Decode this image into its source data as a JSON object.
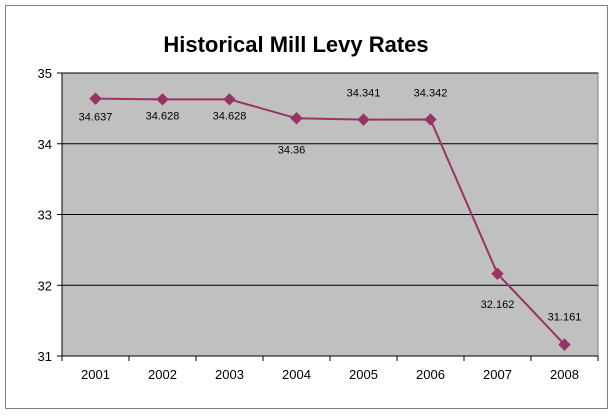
{
  "chart_data": {
    "type": "line",
    "title": "Historical Mill Levy Rates",
    "xlabel": "",
    "ylabel": "",
    "categories": [
      "2001",
      "2002",
      "2003",
      "2004",
      "2005",
      "2006",
      "2007",
      "2008"
    ],
    "series": [
      {
        "values": [
          34.637,
          34.628,
          34.628,
          34.36,
          34.341,
          34.342,
          32.162,
          31.161
        ],
        "data_labels": [
          "34.637",
          "34.628",
          "34.628",
          "34.36",
          "34.341",
          "34.342",
          "32.162",
          "31.161"
        ]
      }
    ],
    "ylim": [
      31,
      35
    ],
    "yticks": [
      "31",
      "32",
      "33",
      "34",
      "35"
    ],
    "grid": true,
    "legend": "none",
    "colors": {
      "line": "#993366",
      "marker": "#993366",
      "plot_background": "#c0c0c0",
      "gridline": "#000000"
    }
  }
}
